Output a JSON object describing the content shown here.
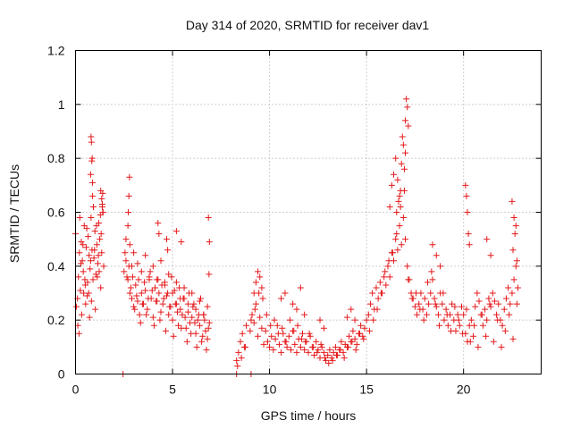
{
  "chart_data": {
    "type": "scatter",
    "title": "Day 314 of 2020, SRMTID for receiver dav1",
    "xlabel": "GPS time / hours",
    "ylabel": "SRMTID / TECUs",
    "xlim": [
      0,
      24
    ],
    "ylim": [
      0,
      1.2
    ],
    "xticks": [
      0,
      5,
      10,
      15,
      20
    ],
    "xtick_labels": [
      "0",
      "5",
      "10",
      "15",
      "20"
    ],
    "yticks": [
      0,
      0.2,
      0.4,
      0.6,
      0.8,
      1.0,
      1.2
    ],
    "ytick_labels": [
      "0",
      "0.2",
      "0.4",
      "0.6",
      "0.8",
      "1",
      "1.2"
    ],
    "grid": true,
    "marker": "+",
    "color": "#e41a1c",
    "series": [
      {
        "name": "dav1",
        "x": [
          0.0,
          0.1,
          0.15,
          0.2,
          0.25,
          0.3,
          0.35,
          0.4,
          0.45,
          0.5,
          0.55,
          0.6,
          0.65,
          0.7,
          0.75,
          0.8,
          0.85,
          0.9,
          0.95,
          1.0,
          1.05,
          1.1,
          1.15,
          1.2,
          1.25,
          1.3,
          1.35,
          1.4,
          1.45,
          0.05,
          0.12,
          0.22,
          0.32,
          0.42,
          0.52,
          0.62,
          0.72,
          0.82,
          0.92,
          1.02,
          1.12,
          1.22,
          1.32,
          0.18,
          0.28,
          0.38,
          0.48,
          0.58,
          0.68,
          0.78,
          0.88,
          0.98,
          1.08,
          1.18,
          1.28,
          1.38,
          0.8,
          0.82,
          0.84,
          0.86,
          0.78,
          0.88,
          1.3,
          1.35,
          1.4,
          1.42,
          1.38,
          2.5,
          2.6,
          2.7,
          2.8,
          2.9,
          3.0,
          3.1,
          3.2,
          3.3,
          3.4,
          3.5,
          3.6,
          3.7,
          3.8,
          3.9,
          4.0,
          4.1,
          4.2,
          4.3,
          4.4,
          4.5,
          4.6,
          4.7,
          4.8,
          4.9,
          5.0,
          5.1,
          5.2,
          5.3,
          5.4,
          5.5,
          5.6,
          5.7,
          5.8,
          5.9,
          6.0,
          6.1,
          6.2,
          6.3,
          6.4,
          6.5,
          6.6,
          6.7,
          6.8,
          6.9,
          2.55,
          2.65,
          2.75,
          2.85,
          2.95,
          3.05,
          3.15,
          3.25,
          3.35,
          3.45,
          3.55,
          3.65,
          3.75,
          3.85,
          3.95,
          4.05,
          4.15,
          4.25,
          4.35,
          4.45,
          4.55,
          4.65,
          4.75,
          4.85,
          4.95,
          5.05,
          5.15,
          5.25,
          5.35,
          5.45,
          5.55,
          5.65,
          5.75,
          5.85,
          5.95,
          6.05,
          6.15,
          6.25,
          6.35,
          6.45,
          6.55,
          6.65,
          6.75,
          6.85,
          2.6,
          2.7,
          2.8,
          2.9,
          3.0,
          3.2,
          3.4,
          3.6,
          3.8,
          4.0,
          4.2,
          4.4,
          4.6,
          4.8,
          5.0,
          5.2,
          5.4,
          5.6,
          5.8,
          6.0,
          6.2,
          6.4,
          6.6,
          6.8,
          2.78,
          2.75,
          2.72,
          4.25,
          4.3,
          4.7,
          4.75,
          5.2,
          5.45,
          6.85,
          6.9,
          6.88,
          8.3,
          8.4,
          8.5,
          8.6,
          8.7,
          8.8,
          9.0,
          9.1,
          9.2,
          9.3,
          9.4,
          9.5,
          9.6,
          9.7,
          9.8,
          9.9,
          10.0,
          10.1,
          10.2,
          10.3,
          10.4,
          10.5,
          10.6,
          10.7,
          10.8,
          10.9,
          11.0,
          11.1,
          11.2,
          11.3,
          11.4,
          11.5,
          11.6,
          11.7,
          11.8,
          11.9,
          12.0,
          12.1,
          12.2,
          12.3,
          12.4,
          12.5,
          12.6,
          12.7,
          12.8,
          12.9,
          13.0,
          13.1,
          13.2,
          13.3,
          13.4,
          13.5,
          13.6,
          13.7,
          13.8,
          13.9,
          14.0,
          14.1,
          14.2,
          14.3,
          14.4,
          14.5,
          14.6,
          14.7,
          14.8,
          14.9,
          15.0,
          8.35,
          8.55,
          8.75,
          9.05,
          9.25,
          9.45,
          9.65,
          9.85,
          10.05,
          10.25,
          10.45,
          10.65,
          10.85,
          11.05,
          11.25,
          11.45,
          11.65,
          11.85,
          12.05,
          12.25,
          12.45,
          12.65,
          12.85,
          13.05,
          13.25,
          13.45,
          13.65,
          13.85,
          14.05,
          14.25,
          14.45,
          14.65,
          14.85,
          9.2,
          9.3,
          9.4,
          9.5,
          9.6,
          10.6,
          10.8,
          11.2,
          11.4,
          11.6,
          11.8,
          12.6,
          12.8,
          14.0,
          14.2,
          14.4,
          15.1,
          15.2,
          15.3,
          15.4,
          15.5,
          15.6,
          15.7,
          15.8,
          15.9,
          16.0,
          16.1,
          16.2,
          16.3,
          16.4,
          16.5,
          16.6,
          16.7,
          16.8,
          16.9,
          17.0,
          17.1,
          17.2,
          17.3,
          17.4,
          17.5,
          17.6,
          17.7,
          17.8,
          17.9,
          18.0,
          18.1,
          18.2,
          18.3,
          18.4,
          18.5,
          18.6,
          18.7,
          18.8,
          18.9,
          19.0,
          19.1,
          19.2,
          19.3,
          19.4,
          19.5,
          19.6,
          19.7,
          19.8,
          19.9,
          20.0,
          20.1,
          20.2,
          20.3,
          20.4,
          20.5,
          20.6,
          20.7,
          20.8,
          20.9,
          21.0,
          21.1,
          21.2,
          21.3,
          21.4,
          21.5,
          21.6,
          21.7,
          21.8,
          21.9,
          22.0,
          22.1,
          22.2,
          22.3,
          22.4,
          22.5,
          22.6,
          22.7,
          22.8,
          15.15,
          15.35,
          15.55,
          15.75,
          15.95,
          16.15,
          16.35,
          16.55,
          16.75,
          16.95,
          17.15,
          17.35,
          17.55,
          17.75,
          17.95,
          18.15,
          18.35,
          18.55,
          18.75,
          18.95,
          19.15,
          19.35,
          19.55,
          19.75,
          19.95,
          20.15,
          20.35,
          20.55,
          20.75,
          20.95,
          21.15,
          21.35,
          21.55,
          21.75,
          21.95,
          22.15,
          22.35,
          22.55,
          22.75,
          16.2,
          16.3,
          16.4,
          16.5,
          16.6,
          16.7,
          16.8,
          16.9,
          17.0,
          17.05,
          17.1,
          17.15,
          16.85,
          16.95,
          16.75,
          16.65,
          16.55,
          17.0,
          18.4,
          18.6,
          18.8,
          20.1,
          20.15,
          20.2,
          20.25,
          20.3,
          21.2,
          21.4,
          22.5,
          22.6,
          22.7,
          22.65,
          22.55,
          22.75,
          2.45,
          8.3,
          9.05
        ],
        "y": [
          0.52,
          0.28,
          0.36,
          0.45,
          0.31,
          0.49,
          0.42,
          0.38,
          0.55,
          0.33,
          0.47,
          0.29,
          0.51,
          0.44,
          0.39,
          0.58,
          0.46,
          0.35,
          0.43,
          0.53,
          0.37,
          0.48,
          0.41,
          0.56,
          0.5,
          0.32,
          0.45,
          0.6,
          0.4,
          0.25,
          0.18,
          0.58,
          0.22,
          0.3,
          0.26,
          0.34,
          0.21,
          0.27,
          0.62,
          0.24,
          0.36,
          0.38,
          0.52,
          0.15,
          0.41,
          0.48,
          0.35,
          0.54,
          0.3,
          0.42,
          0.66,
          0.46,
          0.55,
          0.44,
          0.59,
          0.63,
          0.88,
          0.86,
          0.79,
          0.8,
          0.74,
          0.71,
          0.68,
          0.65,
          0.67,
          0.6,
          0.62,
          0.38,
          0.42,
          0.35,
          0.3,
          0.28,
          0.25,
          0.33,
          0.27,
          0.22,
          0.3,
          0.26,
          0.31,
          0.24,
          0.35,
          0.28,
          0.21,
          0.32,
          0.27,
          0.3,
          0.23,
          0.26,
          0.34,
          0.29,
          0.22,
          0.25,
          0.2,
          0.31,
          0.26,
          0.18,
          0.24,
          0.22,
          0.28,
          0.17,
          0.23,
          0.19,
          0.21,
          0.26,
          0.15,
          0.2,
          0.18,
          0.12,
          0.22,
          0.16,
          0.13,
          0.19,
          0.45,
          0.36,
          0.4,
          0.32,
          0.36,
          0.24,
          0.29,
          0.35,
          0.19,
          0.26,
          0.34,
          0.22,
          0.28,
          0.38,
          0.31,
          0.18,
          0.27,
          0.35,
          0.2,
          0.33,
          0.28,
          0.16,
          0.3,
          0.25,
          0.36,
          0.14,
          0.26,
          0.23,
          0.32,
          0.17,
          0.28,
          0.21,
          0.12,
          0.3,
          0.15,
          0.25,
          0.19,
          0.1,
          0.22,
          0.28,
          0.14,
          0.2,
          0.09,
          0.17,
          0.5,
          0.55,
          0.48,
          0.4,
          0.45,
          0.41,
          0.38,
          0.44,
          0.36,
          0.4,
          0.35,
          0.42,
          0.33,
          0.37,
          0.3,
          0.34,
          0.28,
          0.32,
          0.26,
          0.3,
          0.24,
          0.27,
          0.22,
          0.25,
          0.73,
          0.66,
          0.6,
          0.56,
          0.52,
          0.5,
          0.46,
          0.53,
          0.49,
          0.58,
          0.49,
          0.37,
          0.05,
          0.08,
          0.12,
          0.15,
          0.1,
          0.18,
          0.16,
          0.22,
          0.19,
          0.26,
          0.14,
          0.21,
          0.17,
          0.11,
          0.16,
          0.12,
          0.1,
          0.14,
          0.09,
          0.13,
          0.18,
          0.11,
          0.08,
          0.15,
          0.12,
          0.1,
          0.14,
          0.09,
          0.16,
          0.11,
          0.08,
          0.13,
          0.1,
          0.15,
          0.09,
          0.12,
          0.08,
          0.14,
          0.1,
          0.07,
          0.12,
          0.09,
          0.06,
          0.1,
          0.08,
          0.05,
          0.07,
          0.09,
          0.06,
          0.08,
          0.1,
          0.07,
          0.09,
          0.12,
          0.08,
          0.11,
          0.1,
          0.14,
          0.12,
          0.16,
          0.13,
          0.11,
          0.15,
          0.18,
          0.14,
          0.17,
          0.2,
          0.03,
          0.06,
          0.1,
          0.2,
          0.24,
          0.3,
          0.28,
          0.22,
          0.18,
          0.2,
          0.15,
          0.17,
          0.12,
          0.2,
          0.16,
          0.18,
          0.13,
          0.12,
          0.15,
          0.1,
          0.08,
          0.11,
          0.06,
          0.04,
          0.05,
          0.07,
          0.09,
          0.06,
          0.1,
          0.12,
          0.09,
          0.15,
          0.13,
          0.3,
          0.34,
          0.38,
          0.36,
          0.32,
          0.28,
          0.3,
          0.26,
          0.24,
          0.32,
          0.22,
          0.2,
          0.17,
          0.21,
          0.24,
          0.2,
          0.22,
          0.26,
          0.3,
          0.24,
          0.32,
          0.28,
          0.34,
          0.3,
          0.36,
          0.33,
          0.4,
          0.36,
          0.45,
          0.42,
          0.5,
          0.46,
          0.55,
          0.48,
          0.58,
          0.5,
          0.4,
          0.35,
          0.3,
          0.28,
          0.25,
          0.22,
          0.26,
          0.3,
          0.24,
          0.28,
          0.22,
          0.26,
          0.3,
          0.35,
          0.28,
          0.25,
          0.22,
          0.3,
          0.26,
          0.2,
          0.24,
          0.18,
          0.22,
          0.26,
          0.2,
          0.16,
          0.22,
          0.18,
          0.25,
          0.22,
          0.15,
          0.12,
          0.18,
          0.2,
          0.14,
          0.25,
          0.3,
          0.27,
          0.22,
          0.18,
          0.24,
          0.2,
          0.28,
          0.25,
          0.3,
          0.27,
          0.22,
          0.26,
          0.2,
          0.18,
          0.24,
          0.28,
          0.32,
          0.26,
          0.3,
          0.35,
          0.4,
          0.32,
          0.16,
          0.2,
          0.24,
          0.3,
          0.38,
          0.42,
          0.45,
          0.52,
          0.62,
          0.68,
          0.35,
          0.28,
          0.3,
          0.24,
          0.2,
          0.34,
          0.38,
          0.26,
          0.18,
          0.3,
          0.22,
          0.16,
          0.25,
          0.2,
          0.15,
          0.24,
          0.12,
          0.18,
          0.1,
          0.22,
          0.14,
          0.26,
          0.12,
          0.2,
          0.1,
          0.16,
          0.22,
          0.13,
          0.26,
          0.62,
          0.7,
          0.74,
          0.8,
          0.72,
          0.66,
          0.78,
          0.85,
          0.94,
          1.02,
          0.99,
          0.92,
          0.88,
          0.76,
          0.68,
          0.64,
          0.6,
          0.82,
          0.48,
          0.44,
          0.4,
          0.7,
          0.66,
          0.6,
          0.52,
          0.48,
          0.5,
          0.44,
          0.64,
          0.58,
          0.55,
          0.52,
          0.46,
          0.42,
          0.0,
          0.0,
          0.0
        ]
      }
    ]
  }
}
